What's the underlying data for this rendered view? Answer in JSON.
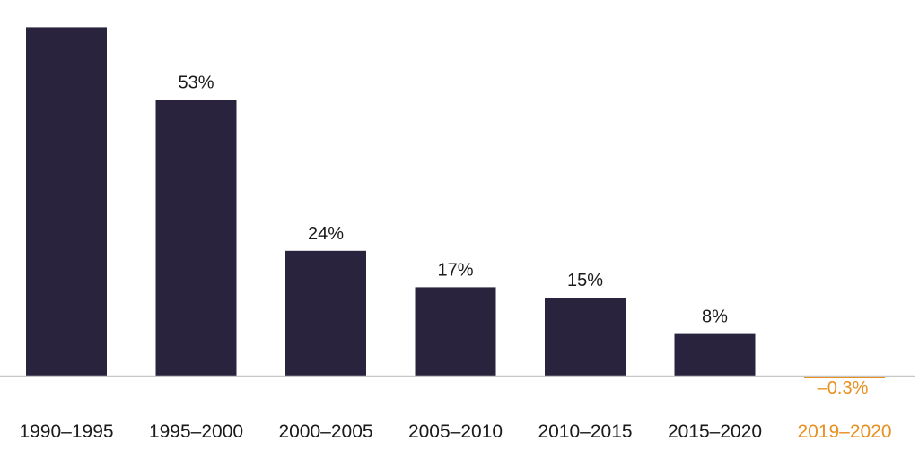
{
  "chart_data": {
    "type": "bar",
    "categories": [
      "1990–1995",
      "1995–2000",
      "2000–2005",
      "2005–2010",
      "2010–2015",
      "2015–2020",
      "2019–2020"
    ],
    "values": [
      67,
      53,
      24,
      17,
      15,
      8,
      -0.3
    ],
    "value_labels": [
      "",
      "53%",
      "24%",
      "17%",
      "15%",
      "8%",
      "–0.3%"
    ],
    "highlighted_index": 6,
    "ylim": [
      -0.3,
      67
    ],
    "grid": false,
    "colors": {
      "bar": "#29233d",
      "highlight": "#e8901e",
      "baseline": "#c8c8c8",
      "text": "#1a1a1a"
    }
  }
}
